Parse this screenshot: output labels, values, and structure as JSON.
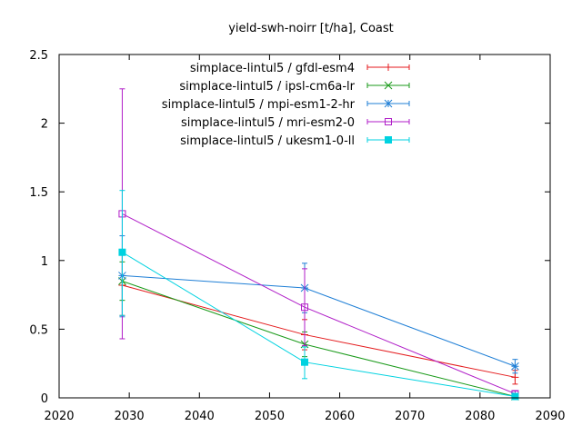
{
  "chart_data": {
    "type": "line",
    "title": "yield-swh-noirr [t/ha], Coast",
    "xlabel": "",
    "ylabel": "",
    "xlim": [
      2020,
      2090
    ],
    "ylim": [
      0,
      2.5
    ],
    "x_ticks": [
      "2020",
      "2030",
      "2040",
      "2050",
      "2060",
      "2070",
      "2080",
      "2090"
    ],
    "y_ticks": [
      "0",
      "0.5",
      "1",
      "1.5",
      "2",
      "2.5"
    ],
    "grid": false,
    "legend_position": "top-right",
    "x": [
      2029,
      2055,
      2085
    ],
    "series": [
      {
        "name": "simplace-lintul5 / gfdl-esm4",
        "color": "#e41a1c",
        "marker": "plus",
        "values": [
          0.82,
          0.46,
          0.15
        ],
        "err_low": [
          0.6,
          0.35,
          0.1
        ],
        "err_high": [
          1.05,
          0.57,
          0.2
        ]
      },
      {
        "name": "simplace-lintul5 / ipsl-cm6a-lr",
        "color": "#1a9a1a",
        "marker": "cross",
        "values": [
          0.85,
          0.39,
          0.01
        ],
        "err_low": [
          0.71,
          0.3,
          0.0
        ],
        "err_high": [
          0.99,
          0.48,
          0.02
        ]
      },
      {
        "name": "simplace-lintul5 / mpi-esm1-2-hr",
        "color": "#1f7fd6",
        "marker": "star",
        "values": [
          0.89,
          0.8,
          0.23
        ],
        "err_low": [
          0.59,
          0.62,
          0.18
        ],
        "err_high": [
          1.18,
          0.98,
          0.28
        ]
      },
      {
        "name": "simplace-lintul5 / mri-esm2-0",
        "color": "#b01ec8",
        "marker": "square-open",
        "values": [
          1.34,
          0.66,
          0.03
        ],
        "err_low": [
          0.43,
          0.38,
          0.01
        ],
        "err_high": [
          2.25,
          0.94,
          0.05
        ]
      },
      {
        "name": "simplace-lintul5 / ukesm1-0-ll",
        "color": "#00d2e0",
        "marker": "square-filled",
        "values": [
          1.06,
          0.26,
          0.01
        ],
        "err_low": [
          0.6,
          0.14,
          0.0
        ],
        "err_high": [
          1.51,
          0.37,
          0.02
        ]
      }
    ]
  }
}
